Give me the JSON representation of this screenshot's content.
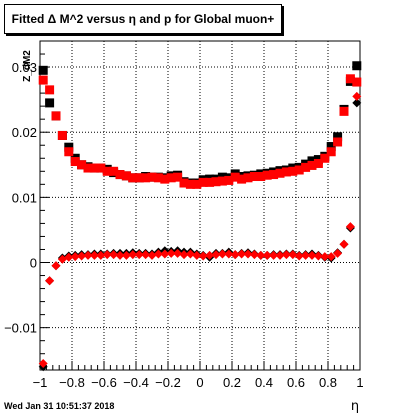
{
  "chart_data": {
    "type": "scatter",
    "title": "Fitted Δ M^2 versus η and p for Global muon+",
    "xlabel": "η",
    "ylabel": "Z_dM2",
    "xlim": [
      -1,
      1
    ],
    "ylim": [
      -0.0165,
      0.034
    ],
    "grid": true,
    "x_ticks": [
      -1,
      -0.8,
      -0.6,
      -0.4,
      -0.2,
      0,
      0.2,
      0.4,
      0.6,
      0.8,
      1
    ],
    "x_tick_labels": [
      "−1",
      "−0.8",
      "−0.6",
      "−0.4",
      "−0.2",
      "0",
      "0.2",
      "0.4",
      "0.6",
      "0.8",
      "1"
    ],
    "y_ticks": [
      -0.01,
      0,
      0.01,
      0.02,
      0.03
    ],
    "y_tick_labels": [
      "−0.01",
      "0",
      "0.01",
      "0.02",
      "0.03"
    ],
    "series": [
      {
        "color": "#000000",
        "marker": "square",
        "x": [
          -0.98,
          -0.94,
          -0.9,
          -0.86,
          -0.82,
          -0.78,
          -0.74,
          -0.7,
          -0.66,
          -0.62,
          -0.58,
          -0.54,
          -0.5,
          -0.46,
          -0.42,
          -0.38,
          -0.34,
          -0.3,
          -0.26,
          -0.22,
          -0.18,
          -0.14,
          -0.1,
          -0.06,
          -0.02,
          0.02,
          0.06,
          0.1,
          0.14,
          0.18,
          0.22,
          0.26,
          0.3,
          0.34,
          0.38,
          0.42,
          0.46,
          0.5,
          0.54,
          0.58,
          0.62,
          0.66,
          0.7,
          0.74,
          0.78,
          0.82,
          0.86,
          0.9,
          0.94,
          0.98
        ],
        "values": [
          0.0295,
          0.0245,
          0.0225,
          0.0195,
          0.0177,
          0.016,
          0.015,
          0.0147,
          0.0145,
          0.0145,
          0.0143,
          0.0138,
          0.0135,
          0.0133,
          0.013,
          0.013,
          0.0132,
          0.0131,
          0.0131,
          0.013,
          0.0133,
          0.0134,
          0.0124,
          0.0122,
          0.0122,
          0.0127,
          0.0128,
          0.0128,
          0.0131,
          0.013,
          0.0136,
          0.0132,
          0.0133,
          0.0134,
          0.0136,
          0.0137,
          0.0139,
          0.0141,
          0.0142,
          0.0145,
          0.0146,
          0.0151,
          0.0156,
          0.0158,
          0.0163,
          0.0178,
          0.0193,
          0.0235,
          0.0278,
          0.0302
        ]
      },
      {
        "color": "#ff0000",
        "marker": "square",
        "x": [
          -0.98,
          -0.94,
          -0.9,
          -0.86,
          -0.82,
          -0.78,
          -0.74,
          -0.7,
          -0.66,
          -0.62,
          -0.58,
          -0.54,
          -0.5,
          -0.46,
          -0.42,
          -0.38,
          -0.34,
          -0.3,
          -0.26,
          -0.22,
          -0.18,
          -0.14,
          -0.1,
          -0.06,
          -0.02,
          0.02,
          0.06,
          0.1,
          0.14,
          0.18,
          0.22,
          0.26,
          0.3,
          0.34,
          0.38,
          0.42,
          0.46,
          0.5,
          0.54,
          0.58,
          0.62,
          0.66,
          0.7,
          0.74,
          0.78,
          0.82,
          0.86,
          0.9,
          0.94,
          0.98
        ],
        "values": [
          0.028,
          0.0265,
          0.0225,
          0.0195,
          0.017,
          0.0155,
          0.015,
          0.0145,
          0.0145,
          0.0145,
          0.014,
          0.014,
          0.0135,
          0.0133,
          0.013,
          0.013,
          0.013,
          0.0131,
          0.013,
          0.0128,
          0.013,
          0.0131,
          0.0122,
          0.012,
          0.012,
          0.0123,
          0.0123,
          0.0124,
          0.0125,
          0.0126,
          0.0131,
          0.0128,
          0.013,
          0.0132,
          0.0132,
          0.0134,
          0.0135,
          0.0137,
          0.0139,
          0.014,
          0.0142,
          0.0146,
          0.0149,
          0.0152,
          0.016,
          0.017,
          0.0185,
          0.0232,
          0.0282,
          0.0277
        ]
      },
      {
        "color": "#000000",
        "marker": "diamond",
        "x": [
          -0.98,
          -0.94,
          -0.9,
          -0.86,
          -0.82,
          -0.78,
          -0.74,
          -0.7,
          -0.66,
          -0.62,
          -0.58,
          -0.54,
          -0.5,
          -0.46,
          -0.42,
          -0.38,
          -0.34,
          -0.3,
          -0.26,
          -0.22,
          -0.18,
          -0.14,
          -0.1,
          -0.06,
          -0.02,
          0.02,
          0.06,
          0.1,
          0.14,
          0.18,
          0.22,
          0.26,
          0.3,
          0.34,
          0.38,
          0.42,
          0.46,
          0.5,
          0.54,
          0.58,
          0.62,
          0.66,
          0.7,
          0.74,
          0.78,
          0.82,
          0.86,
          0.9,
          0.94,
          0.98
        ],
        "values": [
          -0.016,
          -0.0028,
          -0.0005,
          0.0007,
          0.001,
          0.0011,
          0.0012,
          0.0012,
          0.0013,
          0.0013,
          0.0013,
          0.0014,
          0.0014,
          0.0014,
          0.0015,
          0.0014,
          0.0014,
          0.0013,
          0.0016,
          0.0018,
          0.0017,
          0.0018,
          0.0016,
          0.0016,
          0.0013,
          0.0011,
          0.0008,
          0.0014,
          0.0014,
          0.0016,
          0.0012,
          0.0014,
          0.0015,
          0.0013,
          0.0011,
          0.0011,
          0.0012,
          0.0012,
          0.0013,
          0.0013,
          0.0011,
          0.0012,
          0.0013,
          0.0011,
          0.0008,
          0.0007,
          0.0015,
          0.0028,
          0.0053,
          0.0245
        ]
      },
      {
        "color": "#ff0000",
        "marker": "diamond",
        "x": [
          -0.98,
          -0.94,
          -0.9,
          -0.86,
          -0.82,
          -0.78,
          -0.74,
          -0.7,
          -0.66,
          -0.62,
          -0.58,
          -0.54,
          -0.5,
          -0.46,
          -0.42,
          -0.38,
          -0.34,
          -0.3,
          -0.26,
          -0.22,
          -0.18,
          -0.14,
          -0.1,
          -0.06,
          -0.02,
          0.02,
          0.06,
          0.1,
          0.14,
          0.18,
          0.22,
          0.26,
          0.3,
          0.34,
          0.38,
          0.42,
          0.46,
          0.5,
          0.54,
          0.58,
          0.62,
          0.66,
          0.7,
          0.74,
          0.78,
          0.82,
          0.86,
          0.9,
          0.94,
          0.98
        ],
        "values": [
          -0.0155,
          -0.0028,
          -0.0005,
          0.0005,
          0.0008,
          0.0009,
          0.001,
          0.0011,
          0.0011,
          0.0011,
          0.0012,
          0.0012,
          0.0011,
          0.0011,
          0.0012,
          0.0012,
          0.0012,
          0.0011,
          0.0013,
          0.0013,
          0.0014,
          0.0014,
          0.0012,
          0.0013,
          0.0011,
          0.001,
          0.0011,
          0.0012,
          0.0013,
          0.0013,
          0.0012,
          0.0013,
          0.0013,
          0.0012,
          0.0011,
          0.0011,
          0.0011,
          0.0011,
          0.0012,
          0.0012,
          0.001,
          0.0011,
          0.0011,
          0.001,
          0.0009,
          0.0009,
          0.0014,
          0.0028,
          0.0055,
          0.0255
        ]
      }
    ]
  },
  "footer": {
    "timestamp": "Wed Jan 31 10:51:37 2018"
  }
}
